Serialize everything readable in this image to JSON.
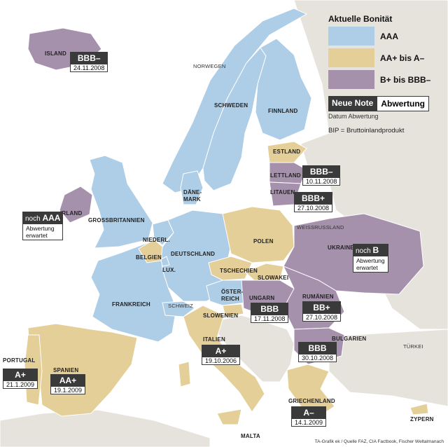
{
  "legend": {
    "title": "Aktuelle Bonität",
    "items": [
      {
        "label": "AAA",
        "color": "#aecde6"
      },
      {
        "label": "AA+ bis A–",
        "color": "#e5cf98"
      },
      {
        "label": "B+ bis BBB–",
        "color": "#a691ad"
      }
    ],
    "sample_note": "Neue Note",
    "sample_text": "Abwertung",
    "sample_sub": "Datum Abwertung",
    "bip": "BIP = Bruttoinlandprodukt"
  },
  "countries": {
    "island": "ISLAND",
    "norway": "NORWEGEN",
    "sweden": "SCHWEDEN",
    "finland": "FINNLAND",
    "estonia": "ESTLAND",
    "latvia": "LETTLAND",
    "lithuania": "LITAUEN",
    "denmark": "DÄNE-\nMARK",
    "ireland": "IRLAND",
    "uk": "GROSSBRITANNIEN",
    "netherlands": "NIEDERL.",
    "belgium": "BELGIEN",
    "luxembourg": "LUX.",
    "germany": "DEUTSCHLAND",
    "poland": "POLEN",
    "belarus": "WEISSRUSSLAND",
    "ukraine": "UKRAINE",
    "czech": "TSCHECHIEN",
    "slovakia": "SLOWAKEI",
    "austria": "ÖSTER-\nREICH",
    "switzerland": "SCHWEIZ",
    "france": "FRANKREICH",
    "slovenia": "SLOWENIEN",
    "hungary": "UNGARN",
    "romania": "RUMÄNIEN",
    "bulgaria": "BULGARIEN",
    "turkey": "TÜRKEI",
    "italy": "ITALIEN",
    "portugal": "PORTUGAL",
    "spain": "SPANIEN",
    "greece": "GRIECHENLAND",
    "cyprus": "ZYPERN",
    "malta": "MALTA"
  },
  "ratings": {
    "island": {
      "note": "BBB–",
      "date": "24.11.2008"
    },
    "latvia": {
      "note": "BBB–",
      "date": "10.11.2008"
    },
    "lithuania": {
      "note": "BBB+",
      "date": "27.10.2008"
    },
    "hungary": {
      "note": "BBB",
      "date": "17.11.2008"
    },
    "romania": {
      "note": "BB+",
      "date": "27.10.2008"
    },
    "bulgaria": {
      "note": "BBB",
      "date": "30.10.2008"
    },
    "italy": {
      "note": "A+",
      "date": "19.10.2006"
    },
    "portugal": {
      "note": "A+",
      "date": "21.1.2009"
    },
    "spain": {
      "note": "AA+",
      "date": "19.1.2009"
    },
    "greece": {
      "note": "A–",
      "date": "14.1.2009"
    }
  },
  "expected": {
    "ireland": {
      "prefix": "noch",
      "note": "AAA",
      "text": "Abwertung\nerwartet"
    },
    "ukraine": {
      "prefix": "noch",
      "note": "B",
      "text": "Abwertung\nerwartet"
    }
  },
  "source": "TA-Grafik ek / Quelle FAZ, CIA Factbook, Fischer Weltalmanach"
}
